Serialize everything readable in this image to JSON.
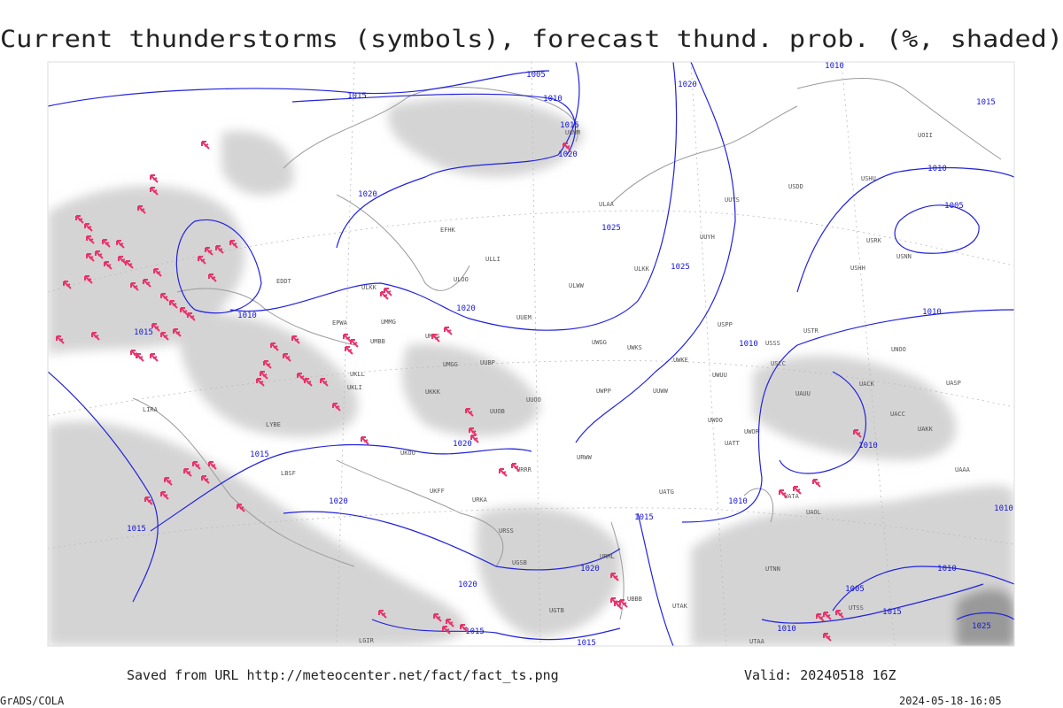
{
  "title": "Current thunderstorms (symbols), forecast thund. prob. (%, shaded)",
  "footer": {
    "source": "Saved from URL http://meteocenter.net/fact/fact_ts.png",
    "valid": "Valid: 20240518 16Z",
    "software": "GrADS/COLA",
    "timestamp": "2024-05-18-16:05"
  },
  "isobar_labels": [
    "1005",
    "1010",
    "1015",
    "1010",
    "1015",
    "1015",
    "1020",
    "1020",
    "1010",
    "1020",
    "1005",
    "1025",
    "1025",
    "1010",
    "1020",
    "1015",
    "1010",
    "1010",
    "1015",
    "1020",
    "1010",
    "1010",
    "1020",
    "1015",
    "1015",
    "1010",
    "1020",
    "1020",
    "1010",
    "1005",
    "1015",
    "1010",
    "1015",
    "1015",
    "1025"
  ],
  "station_labels": [
    "ULMM",
    "ULAA",
    "UUYS",
    "USDD",
    "USHU",
    "UOII",
    "EFHK",
    "ULLI",
    "ULOO",
    "ULWW",
    "ULKK",
    "UUYH",
    "USHH",
    "USRK",
    "USNN",
    "EDDT",
    "EPWA",
    "UMMG",
    "UMBB",
    "UMMS",
    "UUEM",
    "UWGG",
    "UWKS",
    "UUWW",
    "USPP",
    "USSS",
    "USTR",
    "UNOO",
    "UMGG",
    "UUBP",
    "UKKK",
    "UUOB",
    "UUOO",
    "UWPP",
    "UWKE",
    "UWUU",
    "USCC",
    "UAUU",
    "UACK",
    "UASP",
    "LIRA",
    "LYBE",
    "UKLL",
    "UKLI",
    "ULKK",
    "UKOO",
    "URWW",
    "UWOO",
    "UATT",
    "UWOR",
    "UACC",
    "UAKK",
    "LBSF",
    "UKFF",
    "URKA",
    "URRR",
    "UATG",
    "UATA",
    "UAOL",
    "UAAA",
    "URSS",
    "UGSB",
    "URML",
    "UGTB",
    "UBBB",
    "UTAK",
    "UTNN",
    "UTSS",
    "LGIR",
    "UTAA"
  ]
}
